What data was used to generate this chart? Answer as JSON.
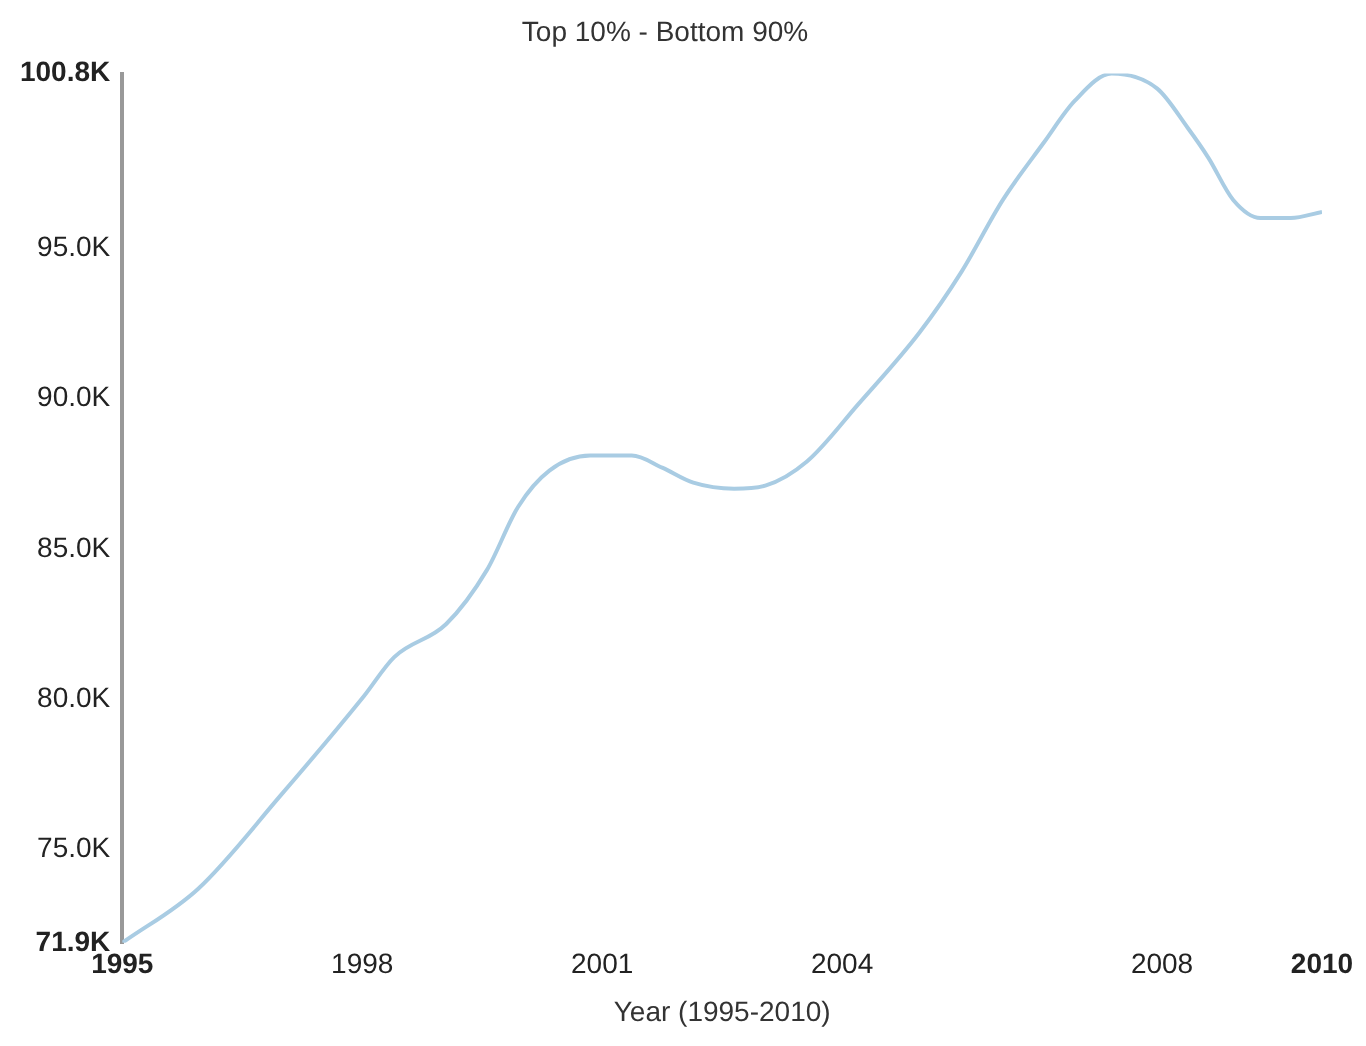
{
  "chart_data": {
    "type": "line",
    "title": "Top 10% - Bottom 90%",
    "xlabel": "Year (1995-2010)",
    "x": [
      1995,
      1995.95,
      1996.98,
      1998.02,
      1998.4,
      1999.05,
      1999.56,
      1999.95,
      2000.34,
      2000.85,
      2001.37,
      2001.75,
      2002.14,
      2002.65,
      2003.04,
      2003.56,
      2004.2,
      2004.97,
      2005.49,
      2006.01,
      2006.52,
      2006.91,
      2007.37,
      2007.94,
      2008.32,
      2008.58,
      2008.89,
      2009.23,
      2009.61,
      2010
    ],
    "series": [
      {
        "color": "#a9cce3",
        "values": [
          71900,
          73700,
          76800,
          80100,
          81400,
          82500,
          84300,
          86400,
          87600,
          88100,
          88100,
          87700,
          87200,
          87000,
          87100,
          87900,
          89800,
          92200,
          94200,
          96600,
          98500,
          99900,
          100800,
          100300,
          99000,
          98000,
          96600,
          96000,
          96000,
          96200
        ]
      }
    ],
    "xlim": [
      1995,
      2010
    ],
    "xticks": [
      1995,
      1998,
      2001,
      2004,
      2008,
      2010
    ],
    "ylim": [
      71900,
      100800
    ],
    "yticks": [
      {
        "value": 71900,
        "label": "71.9K"
      },
      {
        "value": 75000,
        "label": "75.0K"
      },
      {
        "value": 80000,
        "label": "80.0K"
      },
      {
        "value": 85000,
        "label": "85.0K"
      },
      {
        "value": 90000,
        "label": "90.0K"
      },
      {
        "value": 95000,
        "label": "95.0K"
      },
      {
        "value": 100800,
        "label": "100.8K"
      }
    ],
    "grid": false,
    "legend": false,
    "marker": "none",
    "line_style": "solid"
  }
}
